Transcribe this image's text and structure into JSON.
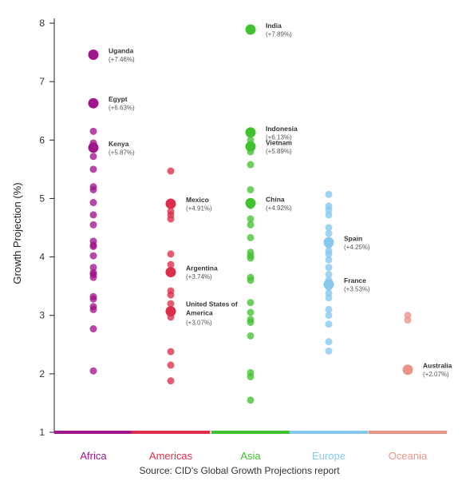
{
  "chart_data": {
    "type": "scatter",
    "ylabel": "Growth Projection (%)",
    "ylim": [
      1,
      8
    ],
    "yticks": [
      "1",
      "2",
      "3",
      "4",
      "5",
      "6",
      "7",
      "8"
    ],
    "grid": false,
    "categories": [
      "Africa",
      "Americas",
      "Asia",
      "Europe",
      "Oceania"
    ],
    "colors": {
      "Africa": "#a0168c",
      "Americas": "#dc2e4a",
      "Asia": "#43c231",
      "Europe": "#86c8ee",
      "Oceania": "#ea9488"
    },
    "series": [
      {
        "name": "Africa",
        "values": [
          7.46,
          6.63,
          6.15,
          5.95,
          5.87,
          5.72,
          5.5,
          5.2,
          5.15,
          4.93,
          4.72,
          4.55,
          4.27,
          4.2,
          4.18,
          4.02,
          3.82,
          3.73,
          3.7,
          3.65,
          3.32,
          3.28,
          3.15,
          3.1,
          2.77,
          2.05
        ]
      },
      {
        "name": "Americas",
        "values": [
          5.47,
          4.91,
          4.78,
          4.72,
          4.65,
          4.05,
          3.87,
          3.74,
          3.42,
          3.35,
          3.2,
          3.07,
          2.97,
          2.38,
          2.15,
          1.88
        ]
      },
      {
        "name": "Asia",
        "values": [
          7.89,
          6.13,
          6.1,
          6.0,
          5.89,
          5.8,
          5.58,
          5.15,
          4.92,
          4.88,
          4.65,
          4.55,
          4.33,
          4.08,
          4.02,
          3.98,
          3.65,
          3.6,
          3.22,
          3.05,
          2.93,
          2.88,
          2.65,
          2.02,
          1.95,
          1.55
        ]
      },
      {
        "name": "Europe",
        "values": [
          5.07,
          4.87,
          4.8,
          4.72,
          4.5,
          4.4,
          4.25,
          4.2,
          4.1,
          4.05,
          3.95,
          3.82,
          3.7,
          3.6,
          3.53,
          3.48,
          3.38,
          3.3,
          3.1,
          3.0,
          2.85,
          2.55,
          2.39
        ]
      },
      {
        "name": "Oceania",
        "values": [
          3.0,
          2.92,
          2.07
        ]
      }
    ],
    "highlighted": [
      {
        "category": "Africa",
        "name": "Uganda",
        "value": 7.46,
        "label": "(+7.46%)"
      },
      {
        "category": "Africa",
        "name": "Egypt",
        "value": 6.63,
        "label": "(+6.63%)"
      },
      {
        "category": "Africa",
        "name": "Kenya",
        "value": 5.87,
        "label": "(+5.87%)"
      },
      {
        "category": "Americas",
        "name": "Mexico",
        "value": 4.91,
        "label": "(+4.91%)"
      },
      {
        "category": "Americas",
        "name": "Argentina",
        "value": 3.74,
        "label": "(+3.74%)"
      },
      {
        "category": "Americas",
        "name": "United States of America",
        "lines": [
          "United States of",
          "America"
        ],
        "value": 3.07,
        "label": "(+3.07%)"
      },
      {
        "category": "Asia",
        "name": "India",
        "value": 7.89,
        "label": "(+7.89%)"
      },
      {
        "category": "Asia",
        "name": "Indonesia",
        "value": 6.13,
        "label": "(+6.13%)"
      },
      {
        "category": "Asia",
        "name": "Vietnam",
        "value": 5.89,
        "label": "(+5.89%)"
      },
      {
        "category": "Asia",
        "name": "China",
        "value": 4.92,
        "label": "(+4.92%)"
      },
      {
        "category": "Europe",
        "name": "Spain",
        "value": 4.25,
        "label": "(+4.25%)"
      },
      {
        "category": "Europe",
        "name": "France",
        "value": 3.53,
        "label": "(+3.53%)"
      },
      {
        "category": "Oceania",
        "name": "Australia",
        "value": 2.07,
        "label": "(+2.07%)"
      }
    ]
  },
  "source": "Source: CID's Global Growth Projections report"
}
